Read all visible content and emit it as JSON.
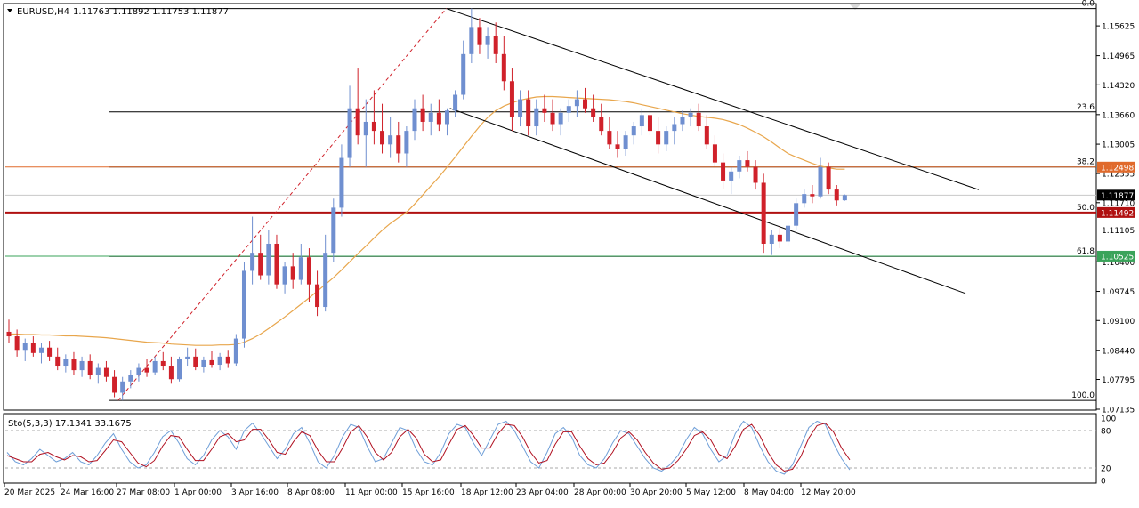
{
  "header": {
    "symbol": "EURUSD,H4",
    "ohlc": "1.11763 1.11892 1.11753 1.11877"
  },
  "colors": {
    "up": "#6f8fd0",
    "down": "#d0212a",
    "ma": "#e8a64c",
    "fib": "#000000",
    "green_level": "#3aa35a",
    "orange_level": "#e06a2c",
    "red_level": "#b01010",
    "stoch_main": "#6f9fd8",
    "stoch_signal": "#b01020"
  },
  "chart_data": {
    "type": "candlestick",
    "symbol": "EURUSD",
    "timeframe": "H4",
    "ylim": [
      1.07135,
      1.161
    ],
    "price_ticks": [
      "1.15625",
      "1.14965",
      "1.14320",
      "1.13660",
      "1.13005",
      "1.12355",
      "1.11710",
      "1.11105",
      "1.10400",
      "1.09745",
      "1.09100",
      "1.08440",
      "1.07795",
      "1.07135"
    ],
    "x_labels": [
      "20 Mar 2025",
      "24 Mar 16:00",
      "27 Mar 08:00",
      "1 Apr 00:00",
      "3 Apr 16:00",
      "8 Apr 08:00",
      "11 Apr 00:00",
      "15 Apr 16:00",
      "18 Apr 12:00",
      "23 Apr 04:00",
      "28 Apr 00:00",
      "30 Apr 20:00",
      "5 May 12:00",
      "8 May 04:00",
      "12 May 20:00"
    ],
    "fib_levels": [
      {
        "label": "0.0",
        "price": 1.1601
      },
      {
        "label": "23.6",
        "price": 1.1372
      },
      {
        "label": "38.2",
        "price": 1.125
      },
      {
        "label": "50.0",
        "price": 1.1149
      },
      {
        "label": "61.8",
        "price": 1.1052
      },
      {
        "label": "100.0",
        "price": 1.0733
      }
    ],
    "price_tags": [
      {
        "value": "1.12498",
        "price": 1.12498,
        "color": "#e06a2c"
      },
      {
        "value": "1.11877",
        "price": 1.11877,
        "color": "#000000"
      },
      {
        "value": "1.11492",
        "price": 1.11492,
        "color": "#b01010"
      },
      {
        "value": "1.10525",
        "price": 1.10525,
        "color": "#3aa35a"
      }
    ],
    "candles": [
      {
        "o": 1.0885,
        "h": 1.0912,
        "l": 1.086,
        "c": 1.0875
      },
      {
        "o": 1.0875,
        "h": 1.089,
        "l": 1.083,
        "c": 1.0845
      },
      {
        "o": 1.0845,
        "h": 1.087,
        "l": 1.082,
        "c": 1.086
      },
      {
        "o": 1.086,
        "h": 1.0875,
        "l": 1.083,
        "c": 1.0838
      },
      {
        "o": 1.0838,
        "h": 1.086,
        "l": 1.0815,
        "c": 1.085
      },
      {
        "o": 1.085,
        "h": 1.0865,
        "l": 1.082,
        "c": 1.083
      },
      {
        "o": 1.083,
        "h": 1.085,
        "l": 1.08,
        "c": 1.081
      },
      {
        "o": 1.081,
        "h": 1.0835,
        "l": 1.0795,
        "c": 1.0825
      },
      {
        "o": 1.0825,
        "h": 1.084,
        "l": 1.079,
        "c": 1.08
      },
      {
        "o": 1.08,
        "h": 1.083,
        "l": 1.0785,
        "c": 1.082
      },
      {
        "o": 1.082,
        "h": 1.0835,
        "l": 1.078,
        "c": 1.079
      },
      {
        "o": 1.079,
        "h": 1.0815,
        "l": 1.077,
        "c": 1.0805
      },
      {
        "o": 1.0805,
        "h": 1.082,
        "l": 1.0775,
        "c": 1.0785
      },
      {
        "o": 1.0785,
        "h": 1.08,
        "l": 1.074,
        "c": 1.075
      },
      {
        "o": 1.075,
        "h": 1.0785,
        "l": 1.0733,
        "c": 1.0775
      },
      {
        "o": 1.0775,
        "h": 1.08,
        "l": 1.076,
        "c": 1.079
      },
      {
        "o": 1.079,
        "h": 1.0815,
        "l": 1.0775,
        "c": 1.0805
      },
      {
        "o": 1.0805,
        "h": 1.0825,
        "l": 1.0785,
        "c": 1.0795
      },
      {
        "o": 1.0795,
        "h": 1.083,
        "l": 1.079,
        "c": 1.082
      },
      {
        "o": 1.082,
        "h": 1.084,
        "l": 1.08,
        "c": 1.081
      },
      {
        "o": 1.081,
        "h": 1.083,
        "l": 1.077,
        "c": 1.078
      },
      {
        "o": 1.078,
        "h": 1.083,
        "l": 1.0775,
        "c": 1.0825
      },
      {
        "o": 1.0825,
        "h": 1.085,
        "l": 1.081,
        "c": 1.083
      },
      {
        "o": 1.083,
        "h": 1.0848,
        "l": 1.08,
        "c": 1.0808
      },
      {
        "o": 1.0808,
        "h": 1.083,
        "l": 1.0795,
        "c": 1.0822
      },
      {
        "o": 1.0822,
        "h": 1.0842,
        "l": 1.0805,
        "c": 1.0812
      },
      {
        "o": 1.0812,
        "h": 1.0838,
        "l": 1.08,
        "c": 1.083
      },
      {
        "o": 1.083,
        "h": 1.0845,
        "l": 1.0805,
        "c": 1.0815
      },
      {
        "o": 1.0815,
        "h": 1.088,
        "l": 1.081,
        "c": 1.087
      },
      {
        "o": 1.087,
        "h": 1.104,
        "l": 1.085,
        "c": 1.102
      },
      {
        "o": 1.102,
        "h": 1.114,
        "l": 1.099,
        "c": 1.106
      },
      {
        "o": 1.106,
        "h": 1.11,
        "l": 1.1,
        "c": 1.101
      },
      {
        "o": 1.101,
        "h": 1.111,
        "l": 1.099,
        "c": 1.108
      },
      {
        "o": 1.108,
        "h": 1.11,
        "l": 1.098,
        "c": 1.099
      },
      {
        "o": 1.099,
        "h": 1.104,
        "l": 1.097,
        "c": 1.103
      },
      {
        "o": 1.103,
        "h": 1.106,
        "l": 1.098,
        "c": 1.1
      },
      {
        "o": 1.1,
        "h": 1.108,
        "l": 1.099,
        "c": 1.105
      },
      {
        "o": 1.105,
        "h": 1.107,
        "l": 1.095,
        "c": 1.099
      },
      {
        "o": 1.099,
        "h": 1.102,
        "l": 1.092,
        "c": 1.094
      },
      {
        "o": 1.094,
        "h": 1.11,
        "l": 1.093,
        "c": 1.106
      },
      {
        "o": 1.106,
        "h": 1.118,
        "l": 1.104,
        "c": 1.116
      },
      {
        "o": 1.116,
        "h": 1.13,
        "l": 1.114,
        "c": 1.127
      },
      {
        "o": 1.127,
        "h": 1.143,
        "l": 1.125,
        "c": 1.138
      },
      {
        "o": 1.138,
        "h": 1.147,
        "l": 1.13,
        "c": 1.132
      },
      {
        "o": 1.132,
        "h": 1.14,
        "l": 1.125,
        "c": 1.135
      },
      {
        "o": 1.135,
        "h": 1.142,
        "l": 1.13,
        "c": 1.133
      },
      {
        "o": 1.133,
        "h": 1.139,
        "l": 1.128,
        "c": 1.13
      },
      {
        "o": 1.13,
        "h": 1.136,
        "l": 1.127,
        "c": 1.132
      },
      {
        "o": 1.132,
        "h": 1.135,
        "l": 1.126,
        "c": 1.128
      },
      {
        "o": 1.128,
        "h": 1.134,
        "l": 1.125,
        "c": 1.133
      },
      {
        "o": 1.133,
        "h": 1.14,
        "l": 1.131,
        "c": 1.138
      },
      {
        "o": 1.138,
        "h": 1.141,
        "l": 1.133,
        "c": 1.135
      },
      {
        "o": 1.135,
        "h": 1.139,
        "l": 1.132,
        "c": 1.137
      },
      {
        "o": 1.137,
        "h": 1.14,
        "l": 1.133,
        "c": 1.1345
      },
      {
        "o": 1.1345,
        "h": 1.138,
        "l": 1.132,
        "c": 1.1375
      },
      {
        "o": 1.1375,
        "h": 1.142,
        "l": 1.136,
        "c": 1.141
      },
      {
        "o": 1.141,
        "h": 1.153,
        "l": 1.14,
        "c": 1.15
      },
      {
        "o": 1.15,
        "h": 1.1601,
        "l": 1.148,
        "c": 1.156
      },
      {
        "o": 1.156,
        "h": 1.158,
        "l": 1.15,
        "c": 1.152
      },
      {
        "o": 1.152,
        "h": 1.156,
        "l": 1.149,
        "c": 1.154
      },
      {
        "o": 1.154,
        "h": 1.157,
        "l": 1.148,
        "c": 1.15
      },
      {
        "o": 1.15,
        "h": 1.154,
        "l": 1.142,
        "c": 1.144
      },
      {
        "o": 1.144,
        "h": 1.147,
        "l": 1.133,
        "c": 1.136
      },
      {
        "o": 1.136,
        "h": 1.142,
        "l": 1.134,
        "c": 1.14
      },
      {
        "o": 1.14,
        "h": 1.142,
        "l": 1.132,
        "c": 1.134
      },
      {
        "o": 1.134,
        "h": 1.14,
        "l": 1.132,
        "c": 1.138
      },
      {
        "o": 1.138,
        "h": 1.141,
        "l": 1.135,
        "c": 1.137
      },
      {
        "o": 1.137,
        "h": 1.14,
        "l": 1.133,
        "c": 1.1345
      },
      {
        "o": 1.1345,
        "h": 1.138,
        "l": 1.132,
        "c": 1.137
      },
      {
        "o": 1.137,
        "h": 1.14,
        "l": 1.135,
        "c": 1.1385
      },
      {
        "o": 1.1385,
        "h": 1.142,
        "l": 1.136,
        "c": 1.14
      },
      {
        "o": 1.14,
        "h": 1.1425,
        "l": 1.137,
        "c": 1.138
      },
      {
        "o": 1.138,
        "h": 1.141,
        "l": 1.135,
        "c": 1.136
      },
      {
        "o": 1.136,
        "h": 1.139,
        "l": 1.132,
        "c": 1.133
      },
      {
        "o": 1.133,
        "h": 1.136,
        "l": 1.129,
        "c": 1.13
      },
      {
        "o": 1.13,
        "h": 1.133,
        "l": 1.127,
        "c": 1.129
      },
      {
        "o": 1.129,
        "h": 1.133,
        "l": 1.1275,
        "c": 1.132
      },
      {
        "o": 1.132,
        "h": 1.135,
        "l": 1.13,
        "c": 1.134
      },
      {
        "o": 1.134,
        "h": 1.138,
        "l": 1.132,
        "c": 1.1365
      },
      {
        "o": 1.1365,
        "h": 1.138,
        "l": 1.132,
        "c": 1.133
      },
      {
        "o": 1.133,
        "h": 1.136,
        "l": 1.128,
        "c": 1.13
      },
      {
        "o": 1.13,
        "h": 1.134,
        "l": 1.1285,
        "c": 1.133
      },
      {
        "o": 1.133,
        "h": 1.136,
        "l": 1.13,
        "c": 1.1345
      },
      {
        "o": 1.1345,
        "h": 1.1375,
        "l": 1.133,
        "c": 1.136
      },
      {
        "o": 1.136,
        "h": 1.138,
        "l": 1.134,
        "c": 1.137
      },
      {
        "o": 1.137,
        "h": 1.139,
        "l": 1.133,
        "c": 1.134
      },
      {
        "o": 1.134,
        "h": 1.1365,
        "l": 1.129,
        "c": 1.13
      },
      {
        "o": 1.13,
        "h": 1.132,
        "l": 1.125,
        "c": 1.126
      },
      {
        "o": 1.126,
        "h": 1.128,
        "l": 1.12,
        "c": 1.122
      },
      {
        "o": 1.122,
        "h": 1.125,
        "l": 1.119,
        "c": 1.124
      },
      {
        "o": 1.124,
        "h": 1.1275,
        "l": 1.1225,
        "c": 1.1265
      },
      {
        "o": 1.1265,
        "h": 1.1285,
        "l": 1.124,
        "c": 1.125
      },
      {
        "o": 1.125,
        "h": 1.1265,
        "l": 1.12,
        "c": 1.1215
      },
      {
        "o": 1.1215,
        "h": 1.1235,
        "l": 1.106,
        "c": 1.108
      },
      {
        "o": 1.108,
        "h": 1.111,
        "l": 1.1055,
        "c": 1.11
      },
      {
        "o": 1.11,
        "h": 1.112,
        "l": 1.107,
        "c": 1.1085
      },
      {
        "o": 1.1085,
        "h": 1.113,
        "l": 1.1075,
        "c": 1.112
      },
      {
        "o": 1.112,
        "h": 1.118,
        "l": 1.111,
        "c": 1.117
      },
      {
        "o": 1.117,
        "h": 1.12,
        "l": 1.116,
        "c": 1.119
      },
      {
        "o": 1.119,
        "h": 1.121,
        "l": 1.117,
        "c": 1.1185
      },
      {
        "o": 1.1185,
        "h": 1.127,
        "l": 1.118,
        "c": 1.125
      },
      {
        "o": 1.125,
        "h": 1.126,
        "l": 1.119,
        "c": 1.12
      },
      {
        "o": 1.12,
        "h": 1.121,
        "l": 1.1165,
        "c": 1.1176
      },
      {
        "o": 1.11763,
        "h": 1.11892,
        "l": 1.11753,
        "c": 1.11877
      }
    ],
    "ma": [
      1.088,
      1.088,
      1.0879,
      1.0879,
      1.0878,
      1.0878,
      1.0877,
      1.0876,
      1.0876,
      1.0875,
      1.0874,
      1.0873,
      1.0872,
      1.087,
      1.0868,
      1.0866,
      1.0864,
      1.0862,
      1.0861,
      1.086,
      1.0858,
      1.0857,
      1.0856,
      1.0855,
      1.0855,
      1.0855,
      1.0856,
      1.0856,
      1.0857,
      1.0862,
      1.087,
      1.088,
      1.0892,
      1.0905,
      1.0918,
      1.0932,
      1.0946,
      1.096,
      1.0975,
      1.099,
      1.1005,
      1.1022,
      1.104,
      1.1058,
      1.1075,
      1.1093,
      1.111,
      1.1125,
      1.1138,
      1.115,
      1.1168,
      1.1188,
      1.1208,
      1.1228,
      1.125,
      1.1272,
      1.1295,
      1.1318,
      1.134,
      1.136,
      1.1375,
      1.1385,
      1.1392,
      1.1398,
      1.1402,
      1.1405,
      1.1406,
      1.1406,
      1.1405,
      1.1404,
      1.1403,
      1.1402,
      1.1401,
      1.14,
      1.1399,
      1.1397,
      1.1395,
      1.1392,
      1.1388,
      1.1384,
      1.138,
      1.1376,
      1.1372,
      1.1368,
      1.1365,
      1.1362,
      1.136,
      1.1358,
      1.1355,
      1.135,
      1.1344,
      1.1336,
      1.1327,
      1.1317,
      1.1305,
      1.1292,
      1.128,
      1.1272,
      1.1265,
      1.1258,
      1.1252,
      1.1248,
      1.1245,
      1.1245
    ],
    "trend_upper": [
      [
        1.1601,
        55
      ],
      [
        1.118,
        100
      ]
    ],
    "trend_lower": [
      [
        1.138,
        55
      ],
      [
        1.097,
        100
      ]
    ],
    "fib_diagonal": [
      [
        1.0733,
        15
      ],
      [
        1.1601,
        55
      ]
    ],
    "stochastic": {
      "label": "Sto(5,3,3) 17.1341 33.1675",
      "ylim": [
        0,
        100
      ],
      "levels": [
        80,
        20
      ],
      "ticks": [
        "100",
        "80",
        "20",
        "0"
      ],
      "main": [
        45,
        30,
        25,
        35,
        50,
        40,
        30,
        35,
        45,
        30,
        25,
        40,
        60,
        75,
        50,
        30,
        20,
        25,
        45,
        70,
        80,
        60,
        35,
        25,
        40,
        65,
        80,
        70,
        50,
        80,
        92,
        75,
        55,
        35,
        50,
        75,
        85,
        60,
        30,
        20,
        40,
        70,
        90,
        85,
        55,
        30,
        35,
        60,
        85,
        80,
        50,
        30,
        25,
        45,
        75,
        90,
        85,
        60,
        40,
        65,
        90,
        95,
        80,
        55,
        30,
        20,
        45,
        75,
        85,
        70,
        40,
        25,
        20,
        35,
        60,
        80,
        75,
        55,
        35,
        20,
        15,
        25,
        40,
        65,
        85,
        75,
        50,
        30,
        40,
        75,
        95,
        85,
        55,
        30,
        15,
        10,
        25,
        55,
        85,
        95,
        90,
        60,
        35,
        17
      ],
      "signal": [
        40,
        35,
        30,
        30,
        42,
        45,
        38,
        33,
        40,
        38,
        30,
        32,
        48,
        65,
        62,
        45,
        28,
        22,
        32,
        55,
        72,
        70,
        50,
        32,
        32,
        50,
        70,
        75,
        62,
        65,
        82,
        82,
        65,
        45,
        42,
        62,
        78,
        72,
        48,
        30,
        30,
        52,
        78,
        88,
        70,
        45,
        33,
        45,
        70,
        82,
        68,
        42,
        30,
        33,
        58,
        82,
        88,
        72,
        52,
        52,
        75,
        90,
        88,
        70,
        45,
        28,
        32,
        58,
        78,
        78,
        55,
        35,
        25,
        28,
        45,
        68,
        78,
        65,
        45,
        28,
        18,
        20,
        32,
        50,
        72,
        78,
        65,
        42,
        35,
        55,
        82,
        90,
        72,
        45,
        25,
        15,
        18,
        38,
        68,
        88,
        92,
        78,
        52,
        33
      ]
    }
  }
}
